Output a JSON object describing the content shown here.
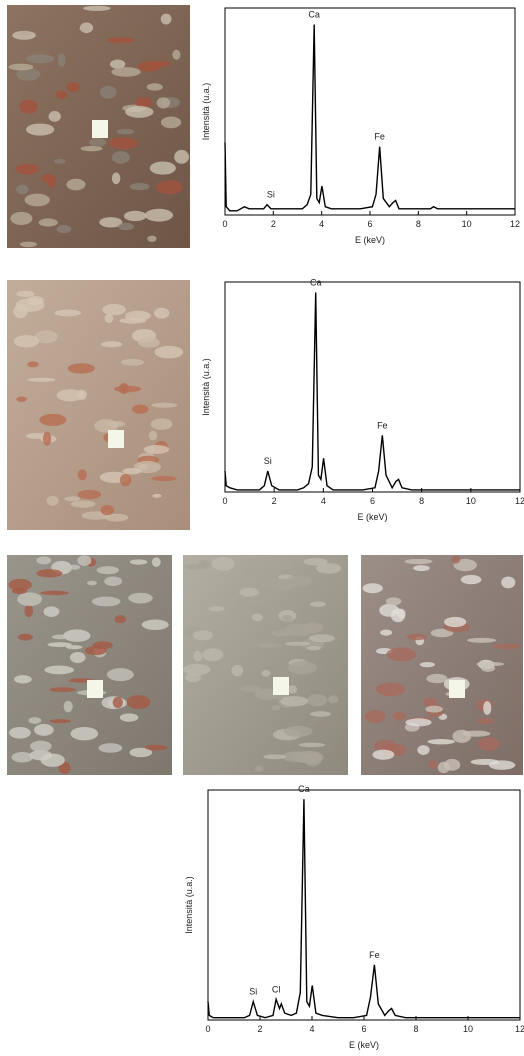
{
  "chart_data": [
    {
      "type": "line",
      "x_label": "E (keV)",
      "y_label": "Intensità (u.a.)",
      "color": "#000000",
      "xlim": [
        0,
        12
      ],
      "xticks": [
        0,
        2,
        4,
        6,
        8,
        10,
        12
      ],
      "ylim": [
        0,
        100
      ],
      "x": [
        0,
        0.05,
        0.2,
        0.5,
        0.8,
        1.0,
        1.4,
        1.6,
        1.74,
        1.9,
        2.2,
        2.5,
        2.62,
        2.75,
        2.82,
        2.95,
        3.2,
        3.4,
        3.55,
        3.69,
        3.8,
        3.9,
        4.01,
        4.15,
        4.4,
        5.0,
        5.6,
        6.1,
        6.25,
        6.4,
        6.55,
        6.8,
        6.95,
        7.06,
        7.2,
        7.6,
        8.0,
        8.5,
        8.63,
        8.8,
        9.5,
        10.5,
        11.5,
        12
      ],
      "values": [
        35,
        4,
        2,
        2,
        4,
        3,
        3,
        3,
        5,
        3,
        3,
        3,
        3,
        3,
        3,
        3,
        3,
        5,
        10,
        92,
        8,
        6,
        14,
        4,
        3,
        3,
        3,
        4,
        10,
        33,
        8,
        4,
        6,
        7,
        3,
        3,
        3,
        3,
        4,
        3,
        3,
        3,
        3,
        3
      ],
      "annotations": [
        {
          "text": "Si",
          "x": 1.9
        },
        {
          "text": "Ca",
          "x": 3.69
        },
        {
          "text": "Fe",
          "x": 6.4
        }
      ]
    },
    {
      "type": "line",
      "x_label": "E (keV)",
      "y_label": "Intensità (u.a.)",
      "color": "#000000",
      "xlim": [
        0,
        12
      ],
      "xticks": [
        0,
        2,
        4,
        6,
        8,
        10,
        12
      ],
      "ylim": [
        0,
        100
      ],
      "x": [
        0,
        0.05,
        0.2,
        0.5,
        0.8,
        1.0,
        1.4,
        1.6,
        1.74,
        1.9,
        2.2,
        2.5,
        2.62,
        2.75,
        2.82,
        2.95,
        3.2,
        3.4,
        3.55,
        3.69,
        3.8,
        3.9,
        4.01,
        4.15,
        4.4,
        5.0,
        5.6,
        6.1,
        6.25,
        6.4,
        6.55,
        6.8,
        6.95,
        7.06,
        7.2,
        7.6,
        8.0,
        8.5,
        8.63,
        8.8,
        9.5,
        10.5,
        11.5,
        12
      ],
      "values": [
        10,
        3,
        2,
        1,
        1,
        1,
        1,
        3,
        10,
        3,
        1,
        1,
        1,
        1,
        1,
        1,
        2,
        4,
        12,
        95,
        8,
        6,
        16,
        3,
        1,
        1,
        1,
        2,
        10,
        27,
        8,
        2,
        5,
        6,
        2,
        1,
        1,
        1,
        1,
        1,
        1,
        1,
        1,
        1
      ],
      "annotations": [
        {
          "text": "Si",
          "x": 1.74
        },
        {
          "text": "Ca",
          "x": 3.69
        },
        {
          "text": "Fe",
          "x": 6.4
        }
      ]
    },
    {
      "type": "line",
      "x_label": "E (keV)",
      "y_label": "Intensità (u.a.)",
      "color": "#000000",
      "xlim": [
        0,
        12
      ],
      "xticks": [
        0,
        2,
        4,
        6,
        8,
        10,
        12
      ],
      "ylim": [
        0,
        100
      ],
      "x": [
        0,
        0.05,
        0.2,
        0.5,
        0.8,
        1.0,
        1.4,
        1.6,
        1.74,
        1.9,
        2.2,
        2.5,
        2.62,
        2.75,
        2.82,
        2.95,
        3.2,
        3.4,
        3.55,
        3.69,
        3.8,
        3.9,
        4.01,
        4.15,
        4.4,
        5.0,
        5.6,
        6.1,
        6.25,
        6.4,
        6.55,
        6.8,
        6.95,
        7.06,
        7.2,
        7.6,
        8.0,
        8.5,
        8.63,
        8.8,
        9.5,
        10.5,
        11.5,
        12
      ],
      "values": [
        8,
        2,
        1,
        1,
        1,
        1,
        1,
        2,
        8,
        2,
        1,
        2,
        9,
        5,
        7,
        3,
        2,
        3,
        12,
        96,
        8,
        6,
        15,
        3,
        2,
        1,
        1,
        2,
        10,
        24,
        7,
        2,
        4,
        5,
        2,
        1,
        1,
        1,
        1,
        1,
        1,
        1,
        1,
        1
      ],
      "annotations": [
        {
          "text": "Si",
          "x": 1.74
        },
        {
          "text": "Cl",
          "x": 2.62
        },
        {
          "text": "Ca",
          "x": 3.69
        },
        {
          "text": "Fe",
          "x": 6.4
        }
      ]
    }
  ]
}
